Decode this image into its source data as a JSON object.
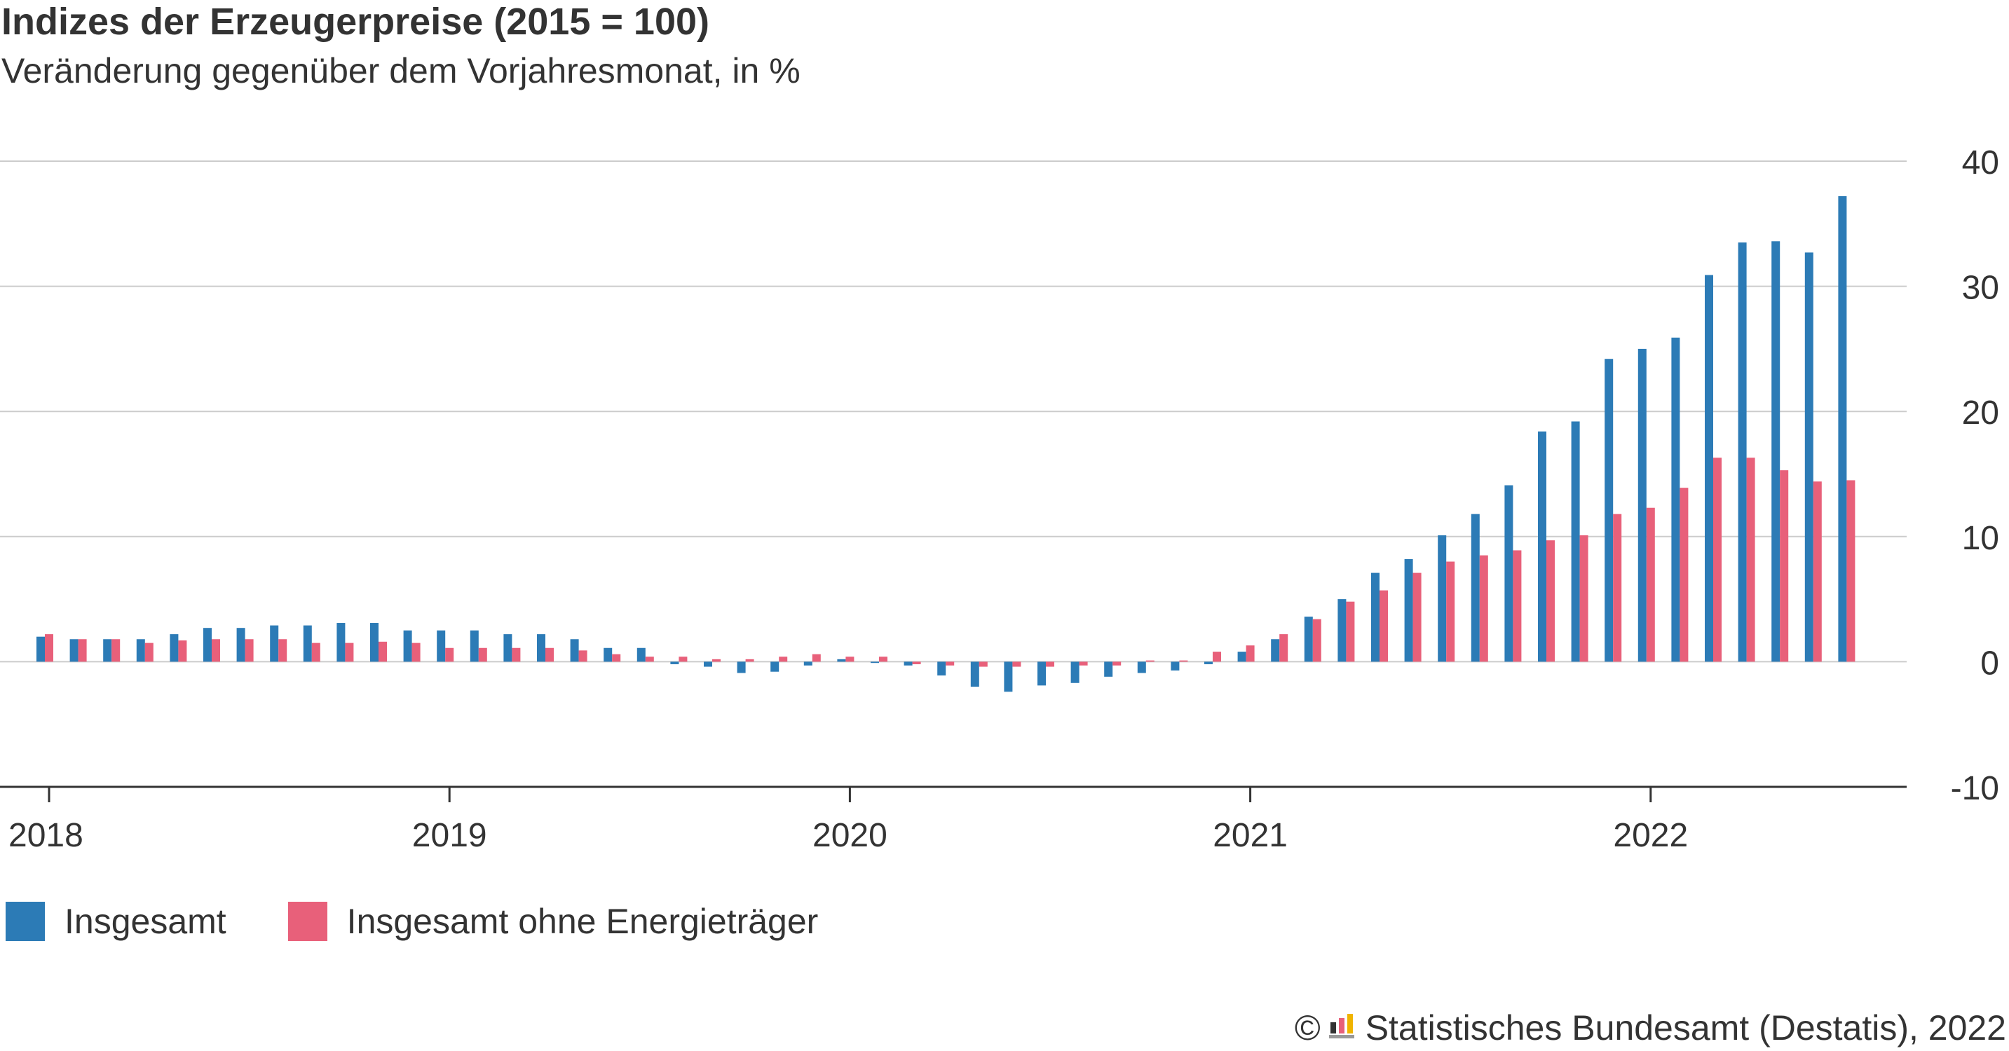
{
  "header": {
    "title": "Indizes der Erzeugerpreise (2015 = 100)",
    "subtitle": "Veränderung gegenüber dem Vorjahresmonat, in %"
  },
  "legend": {
    "items": [
      {
        "label": "Insgesamt",
        "color": "#2c7bb6"
      },
      {
        "label": "Insgesamt ohne Energieträger",
        "color": "#e8607a"
      }
    ]
  },
  "source": {
    "copyright_symbol": "©",
    "text": "Statistisches Bundesamt (Destatis), 2022",
    "logo_icon": "destatis-logo-icon"
  },
  "chart_data": {
    "type": "bar",
    "title": "Indizes der Erzeugerpreise (2015 = 100)",
    "subtitle": "Veränderung gegenüber dem Vorjahresmonat, in %",
    "xlabel": "",
    "ylabel": "",
    "ylim": [
      -10,
      40
    ],
    "yticks": [
      -10,
      0,
      10,
      20,
      30,
      40
    ],
    "ytick_labels": [
      "-10",
      "0",
      "10",
      "20",
      "30",
      "40"
    ],
    "grid": true,
    "y_axis_position": "right",
    "legend_position": "bottom-left",
    "x_tick_labels": [
      "2018",
      "2019",
      "2020",
      "2021",
      "2022"
    ],
    "categories": [
      "2018-01",
      "2018-02",
      "2018-03",
      "2018-04",
      "2018-05",
      "2018-06",
      "2018-07",
      "2018-08",
      "2018-09",
      "2018-10",
      "2018-11",
      "2018-12",
      "2019-01",
      "2019-02",
      "2019-03",
      "2019-04",
      "2019-05",
      "2019-06",
      "2019-07",
      "2019-08",
      "2019-09",
      "2019-10",
      "2019-11",
      "2019-12",
      "2020-01",
      "2020-02",
      "2020-03",
      "2020-04",
      "2020-05",
      "2020-06",
      "2020-07",
      "2020-08",
      "2020-09",
      "2020-10",
      "2020-11",
      "2020-12",
      "2021-01",
      "2021-02",
      "2021-03",
      "2021-04",
      "2021-05",
      "2021-06",
      "2021-07",
      "2021-08",
      "2021-09",
      "2021-10",
      "2021-11",
      "2021-12",
      "2022-01",
      "2022-02",
      "2022-03",
      "2022-04",
      "2022-05",
      "2022-06",
      "2022-07"
    ],
    "series": [
      {
        "name": "Insgesamt",
        "color": "#2c7bb6",
        "values": [
          2.0,
          1.8,
          1.8,
          1.8,
          2.2,
          2.7,
          2.7,
          2.9,
          2.9,
          3.1,
          3.1,
          2.5,
          2.5,
          2.5,
          2.2,
          2.2,
          1.8,
          1.1,
          1.1,
          -0.2,
          -0.4,
          -0.9,
          -0.8,
          -0.3,
          0.2,
          -0.1,
          -0.3,
          -1.1,
          -2.0,
          -2.4,
          -1.9,
          -1.7,
          -1.2,
          -0.9,
          -0.7,
          -0.2,
          0.8,
          1.8,
          3.6,
          5.0,
          7.1,
          8.2,
          10.1,
          11.8,
          14.1,
          18.4,
          19.2,
          24.2,
          25.0,
          25.9,
          30.9,
          33.5,
          33.6,
          32.7,
          37.2
        ]
      },
      {
        "name": "Insgesamt ohne Energieträger",
        "color": "#e8607a",
        "values": [
          2.2,
          1.8,
          1.8,
          1.5,
          1.7,
          1.8,
          1.8,
          1.8,
          1.5,
          1.5,
          1.6,
          1.5,
          1.1,
          1.1,
          1.1,
          1.1,
          0.9,
          0.6,
          0.4,
          0.4,
          0.2,
          0.2,
          0.4,
          0.6,
          0.4,
          0.4,
          -0.2,
          -0.3,
          -0.4,
          -0.4,
          -0.4,
          -0.3,
          -0.3,
          0.1,
          0.1,
          0.8,
          1.3,
          2.2,
          3.4,
          4.8,
          5.7,
          7.1,
          8.0,
          8.5,
          8.9,
          9.7,
          10.1,
          11.8,
          12.3,
          13.9,
          16.3,
          16.3,
          15.3,
          14.4,
          14.5
        ]
      }
    ]
  }
}
